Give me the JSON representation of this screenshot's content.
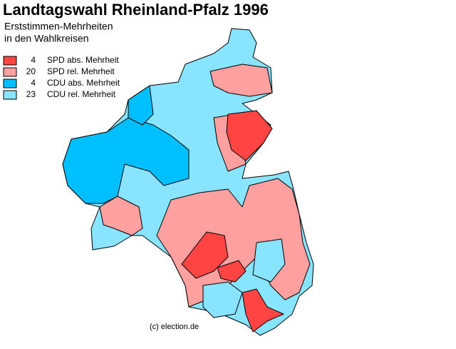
{
  "title": "Landtagswahl Rheinland-Pfalz 1996",
  "subtitle": [
    "Erststimmen-Mehrheiten",
    "in den Wahlkreisen"
  ],
  "legend": [
    {
      "color": "#ff4444",
      "count": 4,
      "label": "SPD abs. Mehrheit"
    },
    {
      "color": "#ffa0a0",
      "count": 20,
      "label": "SPD rel. Mehrheit"
    },
    {
      "color": "#00bfff",
      "count": 4,
      "label": "CDU abs. Mehrheit"
    },
    {
      "color": "#88e4ff",
      "count": 23,
      "label": "CDU rel. Mehrheit"
    }
  ],
  "credit": "(c) election.de"
}
